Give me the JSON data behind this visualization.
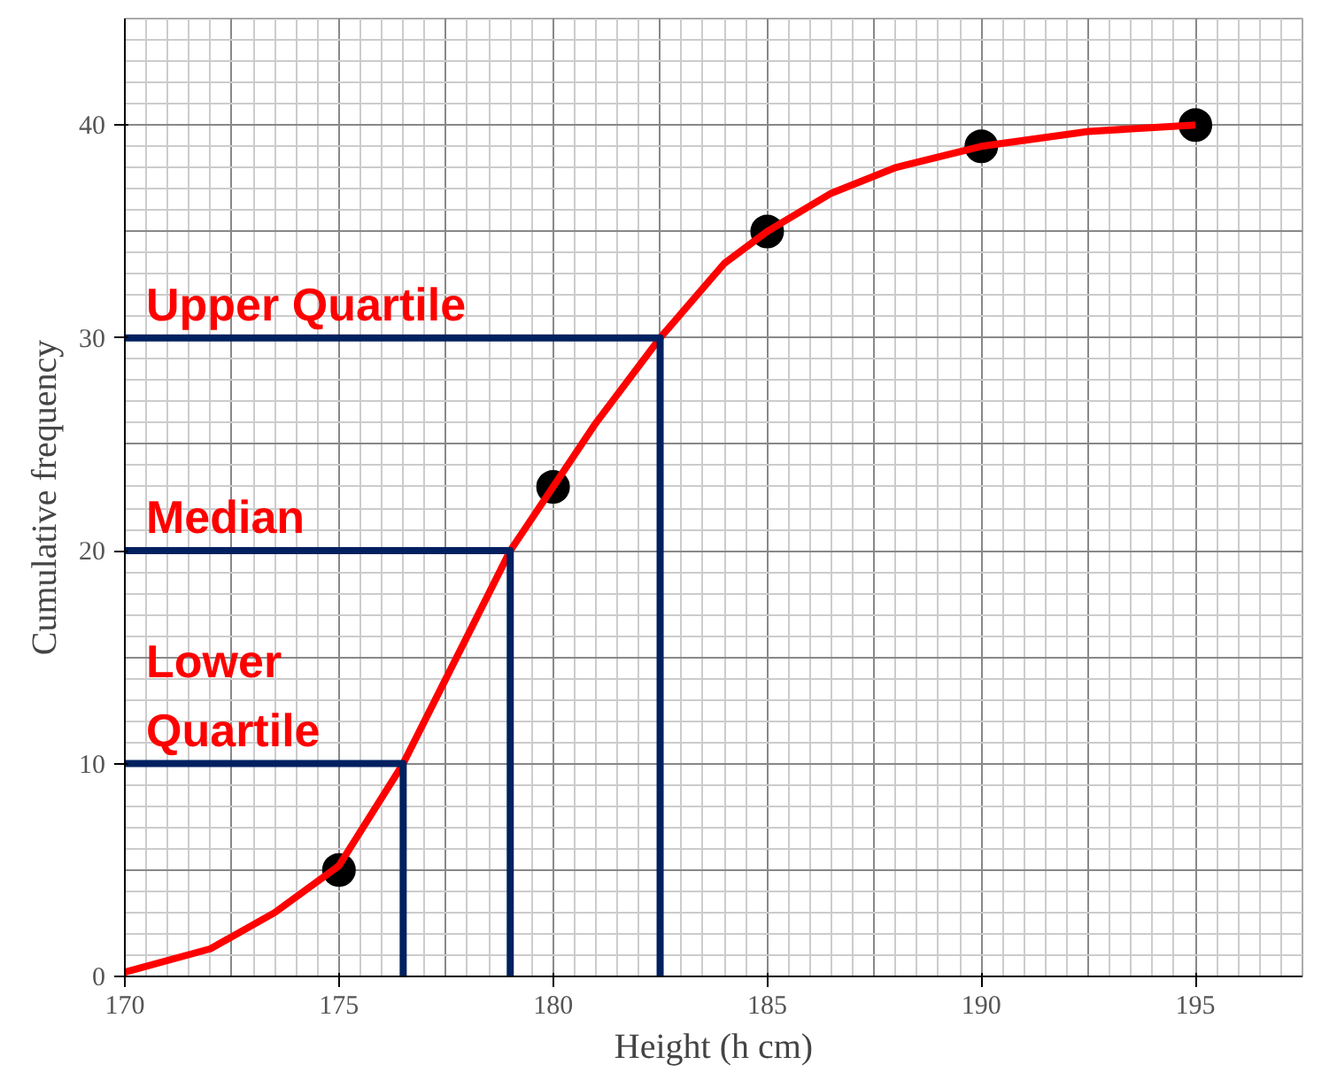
{
  "chart_data": {
    "type": "line",
    "xlabel": "Height (h cm)",
    "ylabel": "Cumulative frequency",
    "xlim": [
      170,
      197.5
    ],
    "ylim": [
      0,
      45
    ],
    "xticks": [
      170,
      175,
      180,
      185,
      190,
      195
    ],
    "yticks": [
      0,
      10,
      20,
      30,
      40
    ],
    "grid": true,
    "series": [
      {
        "type": "scatter",
        "color": "#000000",
        "marker": "circle",
        "x": [
          175,
          180,
          185,
          190,
          195
        ],
        "values": [
          5,
          23,
          35,
          39,
          40
        ]
      },
      {
        "color": "#ff0000",
        "x": [
          170,
          172,
          173.5,
          175,
          176.5,
          177.5,
          178.5,
          179,
          180,
          181,
          182.5,
          184,
          185,
          186.5,
          188,
          190,
          192.5,
          195
        ],
        "values": [
          0.2,
          1.3,
          3,
          5.2,
          10,
          14,
          18,
          20,
          23,
          26,
          30,
          33.5,
          35,
          36.8,
          38,
          39,
          39.7,
          40
        ]
      },
      {
        "color": "#002060",
        "x": [
          170,
          182.5,
          182.5
        ],
        "values": [
          30,
          30,
          0
        ]
      },
      {
        "color": "#002060",
        "x": [
          170,
          179,
          179
        ],
        "values": [
          20,
          20,
          0
        ]
      },
      {
        "color": "#002060",
        "x": [
          170,
          176.5,
          176.5
        ],
        "values": [
          10,
          10,
          0
        ]
      }
    ],
    "annotations": [
      "Upper Quartile",
      "Median",
      "Lower\nQuartile"
    ]
  }
}
